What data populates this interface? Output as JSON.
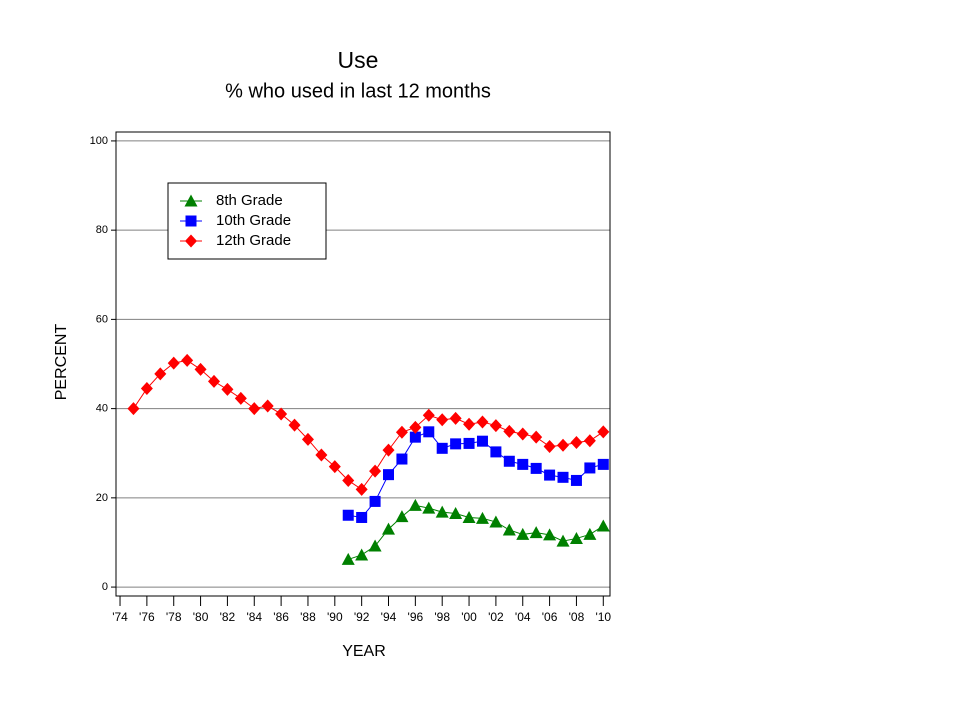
{
  "chart_data": {
    "type": "line",
    "title": "Use",
    "subtitle": "% who used in last 12 months",
    "x_label": "YEAR",
    "y_label": "PERCENT",
    "x": [
      1975,
      1976,
      1977,
      1978,
      1979,
      1980,
      1981,
      1982,
      1983,
      1984,
      1985,
      1986,
      1987,
      1988,
      1989,
      1990,
      1991,
      1992,
      1993,
      1994,
      1995,
      1996,
      1997,
      1998,
      1999,
      2000,
      2001,
      2002,
      2003,
      2004,
      2005,
      2006,
      2007,
      2008,
      2009,
      2010
    ],
    "series": [
      {
        "name": "8th Grade",
        "color": "#008000",
        "marker": "triangle",
        "values": [
          null,
          null,
          null,
          null,
          null,
          null,
          null,
          null,
          null,
          null,
          null,
          null,
          null,
          null,
          null,
          null,
          6.2,
          7.2,
          9.2,
          13.0,
          15.8,
          18.3,
          17.7,
          16.8,
          16.5,
          15.6,
          15.4,
          14.6,
          12.8,
          11.8,
          12.2,
          11.7,
          10.3,
          10.9,
          11.8,
          13.7
        ]
      },
      {
        "name": "10th Grade",
        "color": "#0000ff",
        "marker": "square",
        "values": [
          null,
          null,
          null,
          null,
          null,
          null,
          null,
          null,
          null,
          null,
          null,
          null,
          null,
          null,
          null,
          null,
          16.1,
          15.6,
          19.2,
          25.2,
          28.7,
          33.6,
          34.8,
          31.1,
          32.1,
          32.2,
          32.7,
          30.3,
          28.2,
          27.5,
          26.6,
          25.1,
          24.6,
          23.9,
          26.7,
          27.5
        ]
      },
      {
        "name": "12th Grade",
        "color": "#ff0000",
        "marker": "diamond",
        "values": [
          40.0,
          44.5,
          47.8,
          50.2,
          50.8,
          48.8,
          46.1,
          44.3,
          42.3,
          40.0,
          40.6,
          38.8,
          36.3,
          33.1,
          29.6,
          27.0,
          23.9,
          21.9,
          26.0,
          30.7,
          34.7,
          35.8,
          38.5,
          37.5,
          37.8,
          36.5,
          37.0,
          36.2,
          34.9,
          34.3,
          33.6,
          31.5,
          31.8,
          32.4,
          32.8,
          34.8
        ]
      }
    ],
    "xlim": [
      1973.7,
      2010.5
    ],
    "xticks": [
      {
        "value": 1974,
        "label": "'74"
      },
      {
        "value": 1976,
        "label": "'76"
      },
      {
        "value": 1978,
        "label": "'78"
      },
      {
        "value": 1980,
        "label": "'80"
      },
      {
        "value": 1982,
        "label": "'82"
      },
      {
        "value": 1984,
        "label": "'84"
      },
      {
        "value": 1986,
        "label": "'86"
      },
      {
        "value": 1988,
        "label": "'88"
      },
      {
        "value": 1990,
        "label": "'90"
      },
      {
        "value": 1992,
        "label": "'92"
      },
      {
        "value": 1994,
        "label": "'94"
      },
      {
        "value": 1996,
        "label": "'96"
      },
      {
        "value": 1998,
        "label": "'98"
      },
      {
        "value": 2000,
        "label": "'00"
      },
      {
        "value": 2002,
        "label": "'02"
      },
      {
        "value": 2004,
        "label": "'04"
      },
      {
        "value": 2006,
        "label": "'06"
      },
      {
        "value": 2008,
        "label": "'08"
      },
      {
        "value": 2010,
        "label": "'10"
      }
    ],
    "ylim": [
      -2,
      102
    ],
    "yticks": [
      0,
      20,
      40,
      60,
      80,
      100
    ],
    "grid": true,
    "legend": "upper left"
  }
}
